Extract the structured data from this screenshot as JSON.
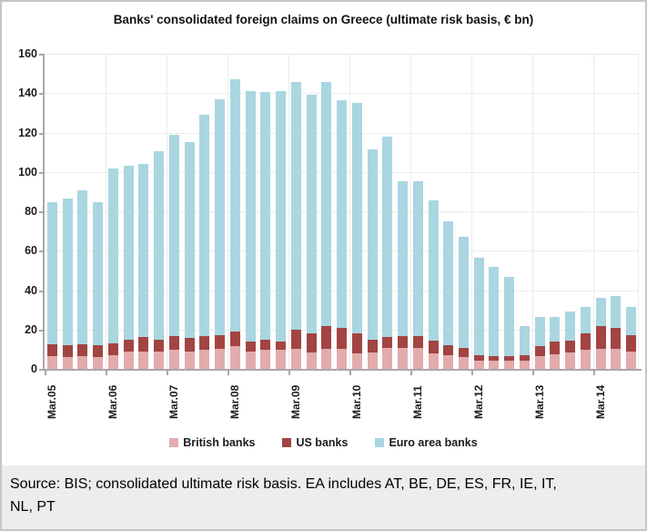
{
  "title": "Banks' consolidated foreign claims on Greece (ultimate risk basis, € bn)",
  "footer": {
    "source": "Source: BIS; consolidated ultimate risk basis. EA includes AT, BE, DE, ES, FR, IE, IT, NL, PT"
  },
  "legend": {
    "items": [
      {
        "label": "British banks",
        "color": "#e3abac"
      },
      {
        "label": "US banks",
        "color": "#a24442"
      },
      {
        "label": "Euro area banks",
        "color": "#a9d6e1"
      }
    ]
  },
  "chart_data": {
    "type": "bar",
    "stacked": true,
    "title": "Banks' consolidated foreign claims on Greece (ultimate risk basis, € bn)",
    "xlabel": "",
    "ylabel": "",
    "ylim": [
      0,
      160
    ],
    "ytick_step": 20,
    "y_tick_labels": [
      0,
      20,
      40,
      60,
      80,
      100,
      120,
      140,
      160
    ],
    "grid": true,
    "legend_position": "bottom",
    "x_tick_labels_visible": [
      "Mar.05",
      "Mar.06",
      "Mar.07",
      "Mar.08",
      "Mar.09",
      "Mar.10",
      "Mar.11",
      "Mar.12",
      "Mar.13",
      "Mar.14"
    ],
    "categories": [
      "Mar.05",
      "Jun.05",
      "Sep.05",
      "Dec.05",
      "Mar.06",
      "Jun.06",
      "Sep.06",
      "Dec.06",
      "Mar.07",
      "Jun.07",
      "Sep.07",
      "Dec.07",
      "Mar.08",
      "Jun.08",
      "Sep.08",
      "Dec.08",
      "Mar.09",
      "Jun.09",
      "Sep.09",
      "Dec.09",
      "Mar.10",
      "Jun.10",
      "Sep.10",
      "Dec.10",
      "Mar.11",
      "Jun.11",
      "Sep.11",
      "Dec.11",
      "Mar.12",
      "Jun.12",
      "Sep.12",
      "Dec.12",
      "Mar.13",
      "Jun.13",
      "Sep.13",
      "Dec.13",
      "Mar.14",
      "Jun.14",
      "Sep.14"
    ],
    "series": [
      {
        "name": "British banks",
        "color": "#e3abac",
        "values": [
          7,
          6.5,
          7,
          6.5,
          7.5,
          9.5,
          9.5,
          9.5,
          10,
          9.5,
          10,
          10.5,
          12,
          9.5,
          10,
          10,
          10.5,
          9,
          10.5,
          10.5,
          8.5,
          9,
          11,
          11,
          11,
          8.5,
          7.5,
          6.5,
          4.5,
          4.5,
          4.5,
          4.5,
          7,
          8,
          9,
          10,
          10.5,
          10.5,
          9.5
        ]
      },
      {
        "name": "US banks",
        "color": "#a24442",
        "values": [
          6,
          6,
          6,
          6,
          6,
          6,
          7,
          6,
          7,
          6.5,
          7,
          7,
          7.5,
          5,
          5.5,
          4.5,
          10,
          9.5,
          11.5,
          11,
          10,
          6.5,
          5.5,
          6,
          6,
          6.5,
          5,
          4.5,
          3,
          2.5,
          2.5,
          3,
          5,
          6.5,
          6,
          8.5,
          11.5,
          11,
          8
        ]
      },
      {
        "name": "Euro area banks",
        "color": "#a9d6e1",
        "values": [
          72,
          74.5,
          78,
          72.5,
          88.5,
          88,
          88,
          95.5,
          102.5,
          99.5,
          112.5,
          120,
          128,
          127,
          125.5,
          127,
          125.5,
          121,
          124,
          115.5,
          117,
          96.5,
          102,
          78.5,
          78.5,
          71,
          63,
          56.5,
          49.5,
          45.5,
          40,
          14.5,
          15,
          12.5,
          14.5,
          13.5,
          14.5,
          16,
          14.5
        ]
      }
    ]
  }
}
